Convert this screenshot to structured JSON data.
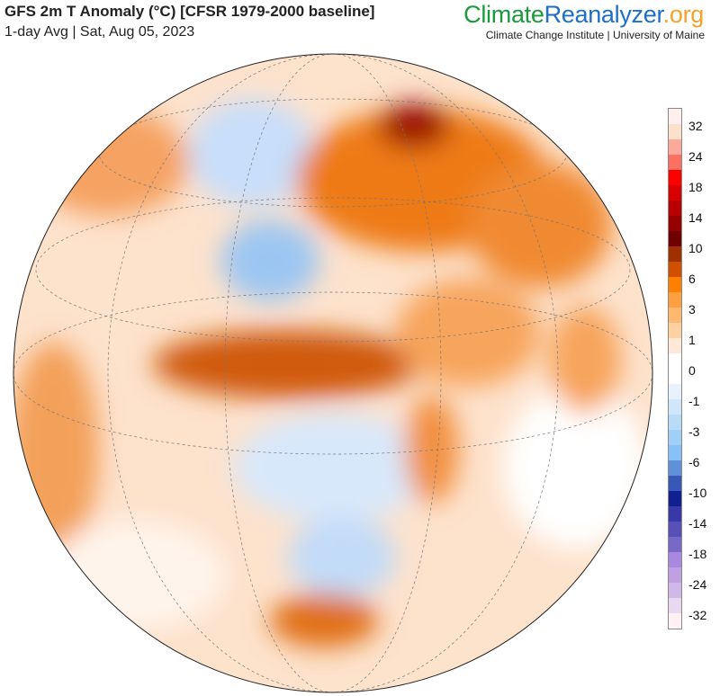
{
  "header": {
    "title": "GFS 2m T Anomaly (°C) [CFSR 1979-2000 baseline]",
    "subtitle": "1-day Avg | Sat, Aug 05, 2023"
  },
  "logo": {
    "part1": "Climate",
    "part2": "Reanalyzer",
    "part3": ".org",
    "tagline": "Climate Change Institute | University of Maine"
  },
  "colorbar": {
    "colors": [
      "#fff0ee",
      "#fde0cc",
      "#fca99a",
      "#fb7060",
      "#ff0000",
      "#d80000",
      "#b80000",
      "#960000",
      "#700000",
      "#a03000",
      "#d05000",
      "#ff8000",
      "#ffa040",
      "#ffb870",
      "#ffd0a0",
      "#ffe8d8",
      "#ffffff",
      "#ffffff",
      "#e8f2fc",
      "#d0e6fa",
      "#b8dcf8",
      "#a0d0f8",
      "#88c0f8",
      "#6090d8",
      "#3858b8",
      "#102090",
      "#3838a8",
      "#5850b8",
      "#7868c8",
      "#a888e0",
      "#c0a0e0",
      "#d0b8e8",
      "#e8d8f0",
      "#fff0f4"
    ],
    "labels": [
      "32",
      "24",
      "18",
      "14",
      "10",
      "6",
      "3",
      "1",
      "0",
      "-1",
      "-3",
      "-6",
      "-10",
      "-14",
      "-18",
      "-24",
      "-32"
    ]
  }
}
